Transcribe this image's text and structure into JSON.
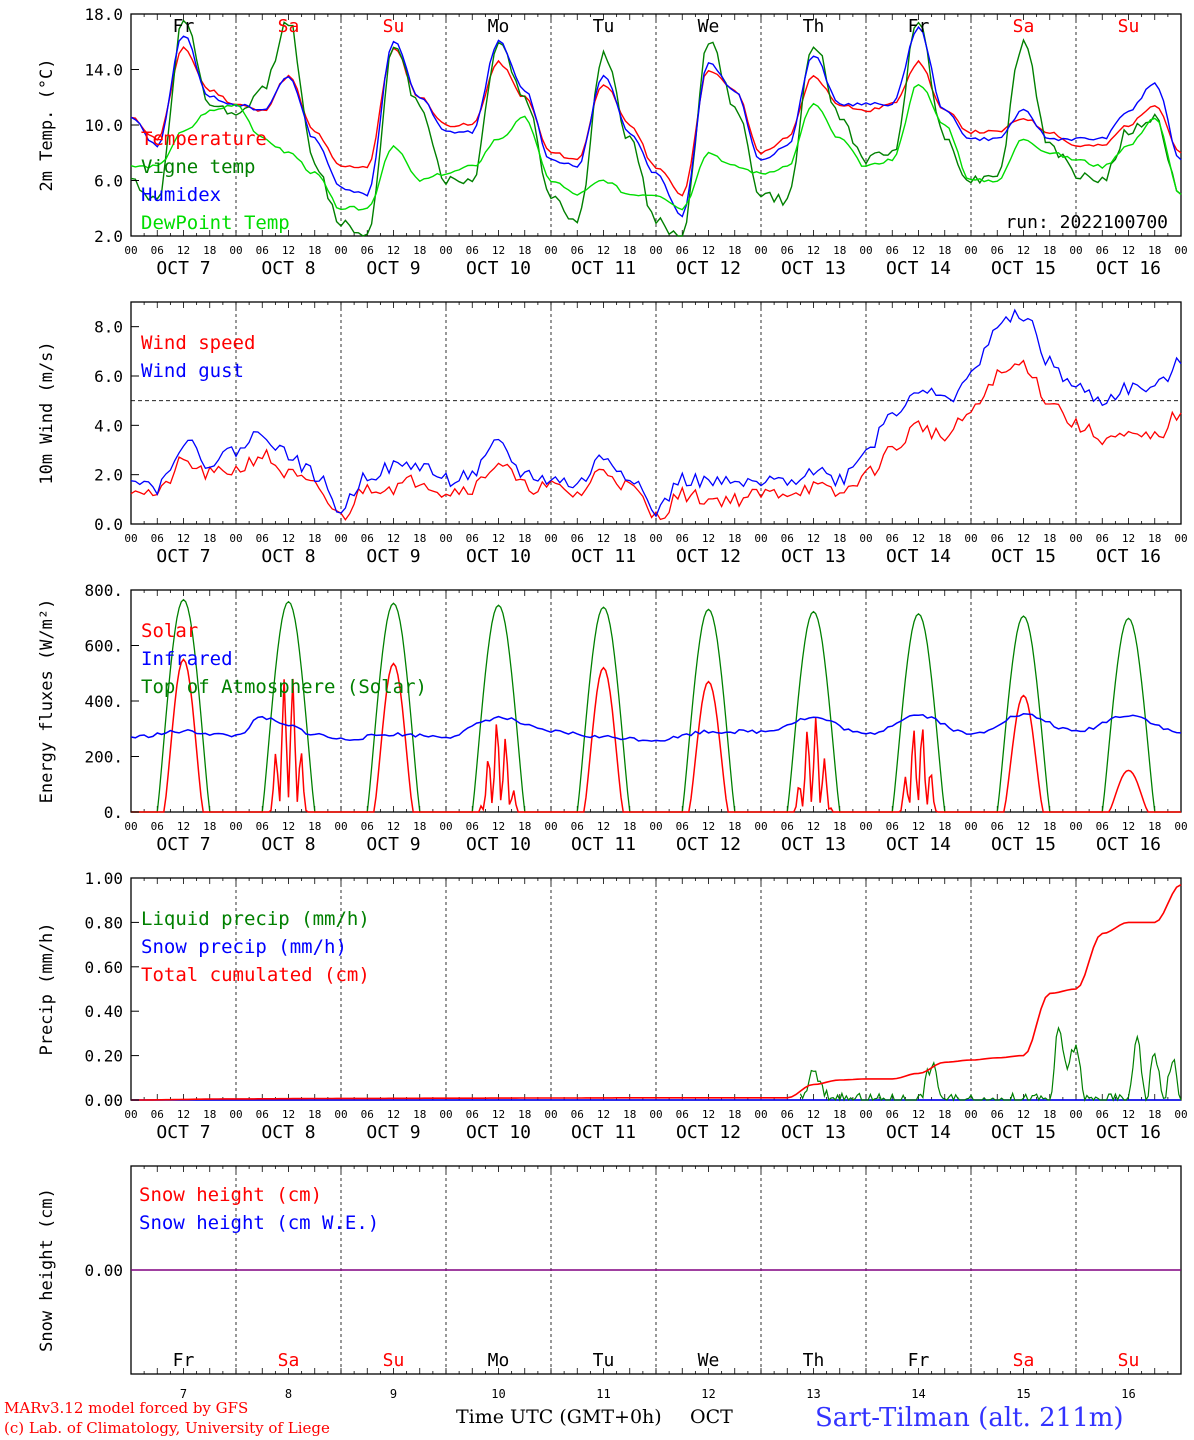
{
  "colors": {
    "temperature": "#ff0000",
    "vigne": "#008000",
    "humidex": "#0000ff",
    "dewpoint": "#00dd00",
    "wind_speed": "#ff0000",
    "wind_gust": "#0000ff",
    "solar": "#ff0000",
    "infrared": "#0000ff",
    "toa": "#008000",
    "liquid": "#008000",
    "snow": "#0000ff",
    "cumul": "#ff0000",
    "snow_h": "#ff0000",
    "snow_we": "#0000ff",
    "snow_line": "#800080",
    "weekday": "#000000",
    "weekend": "#ff0000"
  },
  "days": {
    "names": [
      "Fr",
      "Sa",
      "Su",
      "Mo",
      "Tu",
      "We",
      "Th",
      "Fr",
      "Sa",
      "Su"
    ],
    "weekend": [
      false,
      true,
      true,
      false,
      false,
      false,
      false,
      false,
      true,
      true
    ],
    "dates": [
      "OCT  7",
      "OCT  8",
      "OCT  9",
      "OCT 10",
      "OCT 11",
      "OCT 12",
      "OCT 13",
      "OCT 14",
      "OCT 15",
      "OCT 16"
    ],
    "numbers": [
      "7",
      "8",
      "9",
      "10",
      "11",
      "12",
      "13",
      "14",
      "15",
      "16"
    ],
    "hour_ticks": [
      "00",
      "06",
      "12",
      "18"
    ],
    "final_hour": "00"
  },
  "footer": {
    "model_line1": "MARv3.12 model forced by GFS",
    "model_line2": "(c) Lab. of Climatology, University of Liege",
    "axis_title": "Time UTC (GMT+0h)",
    "axis_month": "OCT",
    "station": "Sart-Tilman (alt. 211m)"
  },
  "chart_data": [
    {
      "type": "line",
      "ylabel": "2m Temp. (°C)",
      "ylim": [
        2.0,
        18.0
      ],
      "yticks": [
        "2.0",
        "6.0",
        "10.0",
        "14.0",
        "18.0"
      ],
      "annotation": "run: 2022100700",
      "legend": [
        "Temperature",
        "Vigne temp",
        "Humidex",
        "DewPoint Temp"
      ],
      "x_hours": [
        0,
        6,
        12,
        18,
        24,
        30,
        36,
        42,
        48,
        54,
        60,
        66,
        72,
        78,
        84,
        90,
        96,
        102,
        108,
        114,
        120,
        126,
        132,
        138,
        144,
        150,
        156,
        162,
        168,
        174,
        180,
        186,
        192,
        198,
        204,
        210,
        216,
        222,
        228,
        234,
        240
      ],
      "series": [
        {
          "name": "Temperature",
          "color_key": "temperature",
          "values": [
            10.5,
            9.0,
            15.5,
            12.5,
            11.5,
            11.0,
            13.5,
            9.5,
            7.0,
            7.0,
            15.5,
            12.0,
            10.0,
            10.0,
            14.5,
            12.0,
            8.0,
            7.5,
            13.0,
            10.0,
            7.0,
            5.0,
            14.0,
            12.5,
            8.0,
            9.0,
            13.5,
            11.5,
            11.0,
            11.5,
            14.5,
            11.0,
            9.5,
            9.5,
            10.5,
            9.5,
            8.5,
            8.5,
            10.0,
            11.5,
            8.0
          ]
        },
        {
          "name": "Vigne temp",
          "color_key": "vigne",
          "values": [
            6.0,
            4.5,
            17.5,
            11.5,
            10.5,
            12.5,
            17.5,
            7.0,
            3.0,
            2.0,
            15.5,
            11.5,
            6.0,
            6.0,
            16.0,
            12.0,
            5.0,
            3.0,
            15.0,
            9.0,
            3.0,
            2.0,
            16.0,
            11.5,
            5.0,
            4.5,
            16.0,
            10.5,
            7.5,
            8.0,
            17.5,
            9.0,
            6.0,
            6.5,
            16.0,
            8.5,
            6.5,
            6.0,
            9.5,
            10.5,
            5.0
          ]
        },
        {
          "name": "Humidex",
          "color_key": "humidex",
          "values": [
            10.5,
            8.5,
            16.5,
            12.0,
            11.5,
            11.0,
            13.5,
            9.0,
            5.5,
            5.0,
            16.0,
            12.0,
            9.5,
            9.5,
            16.0,
            12.5,
            7.5,
            7.0,
            13.5,
            9.5,
            6.5,
            3.5,
            14.5,
            12.5,
            7.5,
            8.5,
            15.0,
            11.5,
            11.5,
            11.5,
            17.0,
            11.0,
            9.0,
            9.0,
            11.0,
            9.0,
            9.0,
            9.0,
            11.0,
            13.0,
            7.5
          ]
        },
        {
          "name": "DewPoint Temp",
          "color_key": "dewpoint",
          "values": [
            7.0,
            7.0,
            9.5,
            11.0,
            11.5,
            9.0,
            8.0,
            6.5,
            4.0,
            4.0,
            8.5,
            6.0,
            6.5,
            7.0,
            9.0,
            10.5,
            6.0,
            5.0,
            6.0,
            5.0,
            5.0,
            4.0,
            8.0,
            7.0,
            6.5,
            7.0,
            11.5,
            9.0,
            7.0,
            7.5,
            13.0,
            10.0,
            6.0,
            6.0,
            9.0,
            8.0,
            7.5,
            7.0,
            8.5,
            10.5,
            5.0
          ]
        }
      ]
    },
    {
      "type": "line",
      "ylabel": "10m Wind (m/s)",
      "ylim": [
        0.0,
        9.0
      ],
      "yticks": [
        "0.0",
        "2.0",
        "4.0",
        "6.0",
        "8.0"
      ],
      "reference_line": 5.0,
      "legend": [
        "Wind speed",
        "Wind gust"
      ],
      "x_hours": [
        0,
        6,
        12,
        18,
        24,
        30,
        36,
        42,
        48,
        54,
        60,
        66,
        72,
        78,
        84,
        90,
        96,
        102,
        108,
        114,
        120,
        126,
        132,
        138,
        144,
        150,
        156,
        162,
        168,
        174,
        180,
        186,
        192,
        198,
        204,
        210,
        216,
        222,
        228,
        234,
        240
      ],
      "series": [
        {
          "name": "Wind speed",
          "color_key": "wind_speed",
          "values": [
            1.5,
            1.2,
            2.5,
            2.0,
            2.2,
            2.8,
            2.0,
            1.5,
            0.3,
            1.5,
            1.5,
            1.8,
            1.3,
            1.5,
            2.5,
            1.5,
            1.5,
            1.2,
            2.2,
            1.5,
            0.3,
            1.2,
            1.0,
            1.0,
            1.2,
            1.3,
            1.5,
            1.2,
            2.0,
            3.0,
            4.0,
            3.5,
            4.5,
            6.0,
            6.5,
            5.0,
            4.0,
            3.5,
            3.5,
            3.5,
            4.5
          ]
        },
        {
          "name": "Wind gust",
          "color_key": "wind_gust",
          "values": [
            2.0,
            1.5,
            3.3,
            2.5,
            3.0,
            3.7,
            2.8,
            2.0,
            0.6,
            2.0,
            2.3,
            2.4,
            1.8,
            2.0,
            3.2,
            2.0,
            1.8,
            1.6,
            2.7,
            2.0,
            0.5,
            1.8,
            1.7,
            1.6,
            1.6,
            1.8,
            2.2,
            1.8,
            3.0,
            4.5,
            5.5,
            5.0,
            6.0,
            8.0,
            8.5,
            6.5,
            5.5,
            5.0,
            5.5,
            5.5,
            6.5
          ]
        }
      ]
    },
    {
      "type": "line",
      "ylabel": "Energy fluxes (W/m²)",
      "ylim": [
        0,
        800
      ],
      "yticks": [
        "0.",
        "200.",
        "400.",
        "600.",
        "800."
      ],
      "legend": [
        "Solar",
        "Infrared",
        "Top of Atmosphere (Solar)"
      ],
      "toa_peaks": [
        765,
        758,
        752,
        745,
        738,
        730,
        722,
        714,
        706,
        698
      ],
      "solar_peaks": [
        550,
        520,
        535,
        330,
        520,
        470,
        350,
        330,
        420,
        150
      ],
      "infrared_x_hours": [
        0,
        12,
        24,
        30,
        36,
        42,
        48,
        60,
        72,
        84,
        96,
        108,
        120,
        132,
        144,
        156,
        168,
        180,
        192,
        204,
        216,
        228,
        240
      ],
      "infrared_values": [
        270,
        290,
        275,
        340,
        310,
        280,
        262,
        280,
        272,
        340,
        290,
        270,
        260,
        290,
        290,
        340,
        280,
        350,
        280,
        350,
        290,
        350,
        285
      ]
    },
    {
      "type": "line",
      "ylabel": "Precip (mm/h)",
      "ylim": [
        0.0,
        1.0
      ],
      "yticks": [
        "0.00",
        "0.20",
        "0.40",
        "0.60",
        "0.80",
        "1.00"
      ],
      "legend": [
        "Liquid precip (mm/h)",
        "Snow precip (mm/h)",
        "Total cumulated (cm)"
      ],
      "cumulated_x_hours": [
        0,
        24,
        48,
        72,
        96,
        120,
        144,
        150,
        156,
        162,
        168,
        174,
        180,
        186,
        192,
        198,
        204,
        210,
        216,
        222,
        228,
        234,
        240
      ],
      "cumulated_values": [
        0.0,
        0.005,
        0.007,
        0.008,
        0.009,
        0.01,
        0.01,
        0.01,
        0.07,
        0.09,
        0.095,
        0.095,
        0.12,
        0.17,
        0.18,
        0.19,
        0.2,
        0.48,
        0.5,
        0.75,
        0.8,
        0.8,
        0.97
      ],
      "liquid_x_hours": [
        153,
        156,
        159,
        162,
        180,
        183,
        186,
        210,
        212,
        214,
        216,
        218,
        228,
        230,
        232,
        234,
        236,
        238,
        240
      ],
      "liquid_values": [
        0.0,
        0.12,
        0.02,
        0.0,
        0.0,
        0.15,
        0.0,
        0.0,
        0.3,
        0.15,
        0.25,
        0.0,
        0.0,
        0.3,
        0.0,
        0.22,
        0.0,
        0.18,
        0.0
      ]
    },
    {
      "type": "line",
      "ylabel": "Snow height (cm)",
      "yticks": [
        "0.00"
      ],
      "legend": [
        "Snow height (cm)",
        "Snow height (cm W.E.)"
      ],
      "values": [
        0.0
      ]
    }
  ]
}
